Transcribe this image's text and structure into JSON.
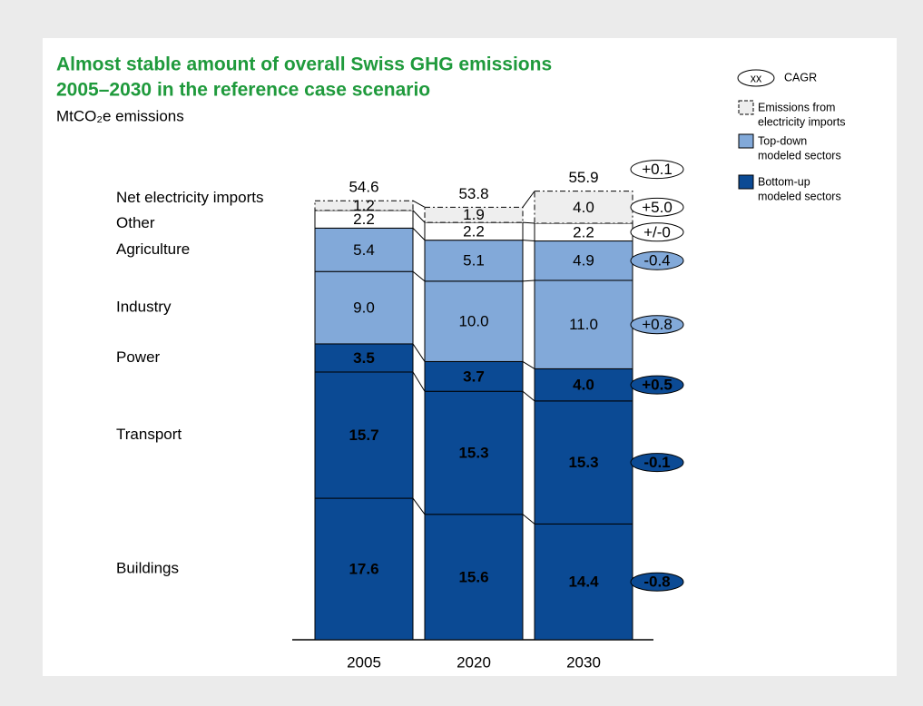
{
  "chart_data": {
    "type": "stacked-bar",
    "title": [
      "Almost stable amount of overall Swiss GHG emissions",
      "2005–2030 in the reference case scenario"
    ],
    "subtitle": "MtCO₂e emissions",
    "categories": [
      "2005",
      "2020",
      "2030"
    ],
    "totals": [
      54.6,
      53.8,
      55.9
    ],
    "total_cagr": "+0.1",
    "series": [
      {
        "name": "Buildings",
        "color": "#0b4a94",
        "values": [
          17.6,
          15.6,
          14.4
        ],
        "value_labels": [
          "17.6",
          "15.6",
          "14.4"
        ],
        "cagr": "-0.8"
      },
      {
        "name": "Transport",
        "color": "#0b4a94",
        "values": [
          15.7,
          15.3,
          15.3
        ],
        "value_labels": [
          "15.7",
          "15.3",
          "15.3"
        ],
        "cagr": "-0.1"
      },
      {
        "name": "Power",
        "color": "#0b4a94",
        "values": [
          3.5,
          3.7,
          4.0
        ],
        "value_labels": [
          "3.5",
          "3.7",
          "4.0"
        ],
        "cagr": "+0.5"
      },
      {
        "name": "Industry",
        "color": "#82a9d9",
        "values": [
          9.0,
          10.0,
          11.0
        ],
        "value_labels": [
          "9.0",
          "10.0",
          "11.0"
        ],
        "cagr": "+0.8"
      },
      {
        "name": "Agriculture",
        "color": "#82a9d9",
        "values": [
          5.4,
          5.1,
          4.9
        ],
        "value_labels": [
          "5.4",
          "5.1",
          "4.9"
        ],
        "cagr": "-0.4"
      },
      {
        "name": "Other",
        "color": "#ffffff",
        "values": [
          2.2,
          2.2,
          2.2
        ],
        "value_labels": [
          "2.2",
          "2.2",
          "2.2"
        ],
        "cagr": "+/-0"
      },
      {
        "name": "Net electricity imports",
        "color": "#eeeeee",
        "values": [
          1.2,
          1.9,
          4.0
        ],
        "value_labels": [
          "1.2",
          "1.9",
          "4.0"
        ],
        "cagr": "+5.0"
      }
    ],
    "legend": [
      {
        "symbol": "xx",
        "label": [
          "CAGR"
        ]
      },
      {
        "color": "#eeeeee",
        "label": [
          "Emissions from",
          "electricity imports"
        ]
      },
      {
        "color": "#82a9d9",
        "label": [
          "Top-down",
          "modeled sectors"
        ]
      },
      {
        "color": "#0b4a94",
        "label": [
          "Bottom-up",
          "modeled sectors"
        ]
      }
    ]
  }
}
